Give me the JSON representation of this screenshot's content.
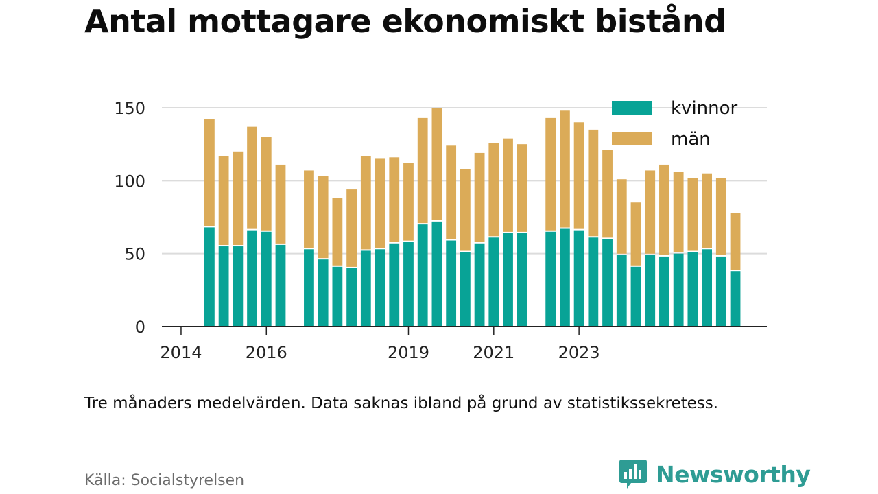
{
  "title": "Antal mottagare ekonomiskt bistånd",
  "note": "Tre månaders medelvärden. Data saknas ibland på grund av statistikssekretess.",
  "source": "Källa: Socialstyrelsen",
  "brand": {
    "name": "Newsworthy",
    "icon": "newsworthy-logo-icon",
    "color": "#2e9c94"
  },
  "colors": {
    "kvinnor": "#08a396",
    "man": "#dbab58",
    "grid": "#dcdcdc",
    "axis": "#222222"
  },
  "chart_data": {
    "type": "bar",
    "stacked": true,
    "x_tick_labels": [
      "2014",
      "2016",
      "2019",
      "2021",
      "2023"
    ],
    "x_tick_slots": [
      -2,
      4,
      14,
      20,
      26
    ],
    "slots": 32,
    "y_ticks": [
      0,
      50,
      100,
      150
    ],
    "ylim": [
      0,
      155
    ],
    "grid": true,
    "legend_position": "top-right",
    "series": [
      {
        "name": "kvinnor",
        "color": "#08a396",
        "values": [
          68,
          55,
          55,
          66,
          65,
          56,
          null,
          53,
          46,
          41,
          40,
          52,
          53,
          57,
          58,
          70,
          72,
          59,
          51,
          57,
          61,
          64,
          64,
          null,
          65,
          67,
          66,
          61,
          60,
          49,
          41,
          49,
          48,
          50,
          51,
          53,
          48,
          38
        ]
      },
      {
        "name": "män",
        "color": "#dbab58",
        "values": [
          74,
          62,
          65,
          71,
          65,
          55,
          null,
          54,
          57,
          47,
          54,
          65,
          62,
          59,
          54,
          73,
          78,
          65,
          57,
          62,
          65,
          65,
          61,
          null,
          78,
          81,
          74,
          74,
          61,
          52,
          44,
          58,
          63,
          56,
          51,
          52,
          54,
          40
        ]
      }
    ]
  }
}
